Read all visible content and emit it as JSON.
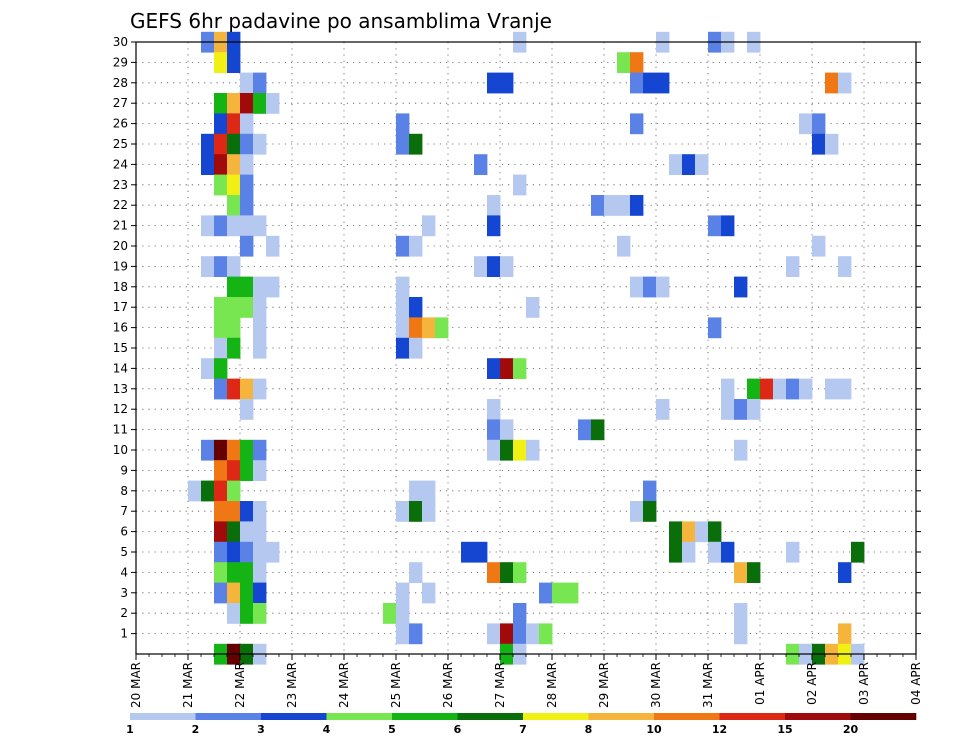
{
  "chart_data": {
    "type": "heatmap",
    "title": "GEFS 6hr padavine po ansamblima Vranje",
    "xlabel": "",
    "ylabel": "",
    "x_ticks": [
      "20 MAR",
      "21 MAR",
      "22 MAR",
      "23 MAR",
      "24 MAR",
      "25 MAR",
      "26 MAR",
      "27 MAR",
      "28 MAR",
      "29 MAR",
      "30 MAR",
      "31 MAR",
      "01 APR",
      "02 APR",
      "03 APR",
      "04 APR"
    ],
    "y_ticks": [
      1,
      2,
      3,
      4,
      5,
      6,
      7,
      8,
      9,
      10,
      11,
      12,
      13,
      14,
      15,
      16,
      17,
      18,
      19,
      20,
      21,
      22,
      23,
      24,
      25,
      26,
      27,
      28,
      29,
      30
    ],
    "x_range": [
      "20 MAR",
      "04 APR"
    ],
    "y_range": [
      0,
      30
    ],
    "time_step_hours": 6,
    "grid": true,
    "colorbar": {
      "labels": [
        "1",
        "2",
        "3",
        "4",
        "5",
        "6",
        "7",
        "8",
        "10",
        "12",
        "15",
        "20"
      ],
      "colors": [
        "#b4c8f0",
        "#5a82e6",
        "#1446d2",
        "#78e650",
        "#14b414",
        "#0a6e0a",
        "#f0f014",
        "#f5b43c",
        "#f07814",
        "#dc2814",
        "#a00a0a",
        "#640000"
      ]
    },
    "cells": [
      [
        30,
        5,
        1
      ],
      [
        30,
        6,
        7
      ],
      [
        30,
        7,
        2
      ],
      [
        30,
        29,
        0
      ],
      [
        30,
        40,
        0
      ],
      [
        30,
        44,
        1
      ],
      [
        30,
        45,
        0
      ],
      [
        30,
        47,
        0
      ],
      [
        29,
        6,
        6
      ],
      [
        29,
        7,
        2
      ],
      [
        29,
        37,
        3
      ],
      [
        29,
        38,
        8
      ],
      [
        28,
        8,
        0
      ],
      [
        28,
        9,
        1
      ],
      [
        28,
        27,
        2
      ],
      [
        28,
        28,
        2
      ],
      [
        28,
        38,
        1
      ],
      [
        28,
        39,
        2
      ],
      [
        28,
        40,
        2
      ],
      [
        28,
        53,
        8
      ],
      [
        28,
        54,
        0
      ],
      [
        27,
        6,
        4
      ],
      [
        27,
        7,
        7
      ],
      [
        27,
        8,
        10
      ],
      [
        27,
        9,
        4
      ],
      [
        27,
        10,
        0
      ],
      [
        26,
        6,
        2
      ],
      [
        26,
        7,
        9
      ],
      [
        26,
        8,
        0
      ],
      [
        26,
        20,
        1
      ],
      [
        26,
        38,
        1
      ],
      [
        26,
        51,
        0
      ],
      [
        26,
        52,
        1
      ],
      [
        25,
        5,
        2
      ],
      [
        25,
        6,
        9
      ],
      [
        25,
        7,
        5
      ],
      [
        25,
        8,
        1
      ],
      [
        25,
        9,
        0
      ],
      [
        25,
        20,
        1
      ],
      [
        25,
        21,
        5
      ],
      [
        25,
        52,
        2
      ],
      [
        25,
        53,
        0
      ],
      [
        24,
        5,
        2
      ],
      [
        24,
        6,
        10
      ],
      [
        24,
        7,
        7
      ],
      [
        24,
        8,
        0
      ],
      [
        24,
        26,
        1
      ],
      [
        24,
        41,
        0
      ],
      [
        24,
        42,
        2
      ],
      [
        24,
        43,
        0
      ],
      [
        23,
        6,
        3
      ],
      [
        23,
        7,
        6
      ],
      [
        23,
        8,
        1
      ],
      [
        23,
        29,
        0
      ],
      [
        22,
        7,
        3
      ],
      [
        22,
        8,
        1
      ],
      [
        22,
        27,
        0
      ],
      [
        22,
        35,
        1
      ],
      [
        22,
        36,
        0
      ],
      [
        22,
        37,
        0
      ],
      [
        22,
        38,
        2
      ],
      [
        21,
        5,
        0
      ],
      [
        21,
        6,
        1
      ],
      [
        21,
        7,
        0
      ],
      [
        21,
        8,
        0
      ],
      [
        21,
        9,
        0
      ],
      [
        21,
        22,
        0
      ],
      [
        21,
        27,
        2
      ],
      [
        21,
        44,
        1
      ],
      [
        21,
        45,
        2
      ],
      [
        20,
        8,
        1
      ],
      [
        20,
        10,
        0
      ],
      [
        20,
        20,
        1
      ],
      [
        20,
        21,
        0
      ],
      [
        20,
        37,
        0
      ],
      [
        20,
        52,
        0
      ],
      [
        19,
        5,
        0
      ],
      [
        19,
        6,
        1
      ],
      [
        19,
        7,
        0
      ],
      [
        19,
        26,
        0
      ],
      [
        19,
        27,
        2
      ],
      [
        19,
        28,
        0
      ],
      [
        19,
        50,
        0
      ],
      [
        19,
        54,
        0
      ],
      [
        18,
        7,
        4
      ],
      [
        18,
        8,
        4
      ],
      [
        18,
        9,
        0
      ],
      [
        18,
        10,
        0
      ],
      [
        18,
        20,
        0
      ],
      [
        18,
        38,
        0
      ],
      [
        18,
        39,
        1
      ],
      [
        18,
        40,
        0
      ],
      [
        18,
        46,
        2
      ],
      [
        17,
        6,
        3
      ],
      [
        17,
        7,
        3
      ],
      [
        17,
        8,
        3
      ],
      [
        17,
        9,
        0
      ],
      [
        17,
        20,
        0
      ],
      [
        17,
        21,
        2
      ],
      [
        17,
        30,
        0
      ],
      [
        16,
        6,
        3
      ],
      [
        16,
        7,
        3
      ],
      [
        16,
        9,
        0
      ],
      [
        16,
        20,
        0
      ],
      [
        16,
        21,
        8
      ],
      [
        16,
        22,
        7
      ],
      [
        16,
        23,
        3
      ],
      [
        16,
        44,
        1
      ],
      [
        15,
        6,
        0
      ],
      [
        15,
        7,
        4
      ],
      [
        15,
        9,
        0
      ],
      [
        15,
        20,
        2
      ],
      [
        15,
        21,
        0
      ],
      [
        14,
        5,
        0
      ],
      [
        14,
        6,
        4
      ],
      [
        14,
        27,
        2
      ],
      [
        14,
        28,
        10
      ],
      [
        14,
        29,
        3
      ],
      [
        13,
        6,
        1
      ],
      [
        13,
        7,
        9
      ],
      [
        13,
        8,
        7
      ],
      [
        13,
        9,
        0
      ],
      [
        13,
        45,
        0
      ],
      [
        13,
        47,
        4
      ],
      [
        13,
        48,
        9
      ],
      [
        13,
        49,
        0
      ],
      [
        13,
        50,
        1
      ],
      [
        13,
        51,
        0
      ],
      [
        13,
        53,
        0
      ],
      [
        13,
        54,
        0
      ],
      [
        12,
        8,
        0
      ],
      [
        12,
        27,
        0
      ],
      [
        12,
        40,
        0
      ],
      [
        12,
        45,
        0
      ],
      [
        12,
        46,
        1
      ],
      [
        12,
        47,
        0
      ],
      [
        11,
        27,
        1
      ],
      [
        11,
        28,
        0
      ],
      [
        11,
        34,
        1
      ],
      [
        11,
        35,
        5
      ],
      [
        10,
        5,
        1
      ],
      [
        10,
        6,
        11
      ],
      [
        10,
        7,
        8
      ],
      [
        10,
        8,
        4
      ],
      [
        10,
        9,
        1
      ],
      [
        10,
        27,
        0
      ],
      [
        10,
        28,
        5
      ],
      [
        10,
        29,
        6
      ],
      [
        10,
        30,
        0
      ],
      [
        10,
        46,
        0
      ],
      [
        9,
        6,
        8
      ],
      [
        9,
        7,
        9
      ],
      [
        9,
        8,
        4
      ],
      [
        9,
        9,
        0
      ],
      [
        8,
        4,
        0
      ],
      [
        8,
        5,
        5
      ],
      [
        8,
        6,
        9
      ],
      [
        8,
        7,
        3
      ],
      [
        8,
        21,
        0
      ],
      [
        8,
        22,
        0
      ],
      [
        8,
        39,
        1
      ],
      [
        7,
        6,
        8
      ],
      [
        7,
        7,
        8
      ],
      [
        7,
        8,
        2
      ],
      [
        7,
        9,
        0
      ],
      [
        7,
        20,
        0
      ],
      [
        7,
        21,
        5
      ],
      [
        7,
        22,
        0
      ],
      [
        7,
        38,
        0
      ],
      [
        7,
        39,
        5
      ],
      [
        6,
        6,
        10
      ],
      [
        6,
        7,
        5
      ],
      [
        6,
        8,
        0
      ],
      [
        6,
        9,
        0
      ],
      [
        6,
        41,
        5
      ],
      [
        6,
        42,
        7
      ],
      [
        6,
        43,
        0
      ],
      [
        6,
        44,
        5
      ],
      [
        5,
        6,
        1
      ],
      [
        5,
        7,
        2
      ],
      [
        5,
        8,
        1
      ],
      [
        5,
        9,
        0
      ],
      [
        5,
        10,
        0
      ],
      [
        5,
        25,
        2
      ],
      [
        5,
        26,
        2
      ],
      [
        5,
        41,
        5
      ],
      [
        5,
        42,
        0
      ],
      [
        5,
        44,
        0
      ],
      [
        5,
        45,
        2
      ],
      [
        5,
        50,
        0
      ],
      [
        5,
        55,
        5
      ],
      [
        4,
        6,
        3
      ],
      [
        4,
        7,
        4
      ],
      [
        4,
        8,
        4
      ],
      [
        4,
        9,
        0
      ],
      [
        4,
        21,
        0
      ],
      [
        4,
        27,
        8
      ],
      [
        4,
        28,
        5
      ],
      [
        4,
        29,
        3
      ],
      [
        4,
        46,
        7
      ],
      [
        4,
        47,
        5
      ],
      [
        4,
        54,
        2
      ],
      [
        3,
        6,
        1
      ],
      [
        3,
        7,
        7
      ],
      [
        3,
        8,
        4
      ],
      [
        3,
        9,
        2
      ],
      [
        3,
        20,
        0
      ],
      [
        3,
        22,
        0
      ],
      [
        3,
        31,
        1
      ],
      [
        3,
        32,
        3
      ],
      [
        3,
        33,
        3
      ],
      [
        2,
        7,
        0
      ],
      [
        2,
        8,
        4
      ],
      [
        2,
        9,
        3
      ],
      [
        2,
        19,
        3
      ],
      [
        2,
        20,
        0
      ],
      [
        2,
        29,
        1
      ],
      [
        2,
        46,
        0
      ],
      [
        1,
        20,
        0
      ],
      [
        1,
        21,
        1
      ],
      [
        1,
        27,
        0
      ],
      [
        1,
        28,
        10
      ],
      [
        1,
        29,
        1
      ],
      [
        1,
        30,
        0
      ],
      [
        1,
        31,
        3
      ],
      [
        1,
        46,
        0
      ],
      [
        1,
        54,
        7
      ],
      [
        0,
        6,
        4
      ],
      [
        0,
        7,
        11
      ],
      [
        0,
        8,
        5
      ],
      [
        0,
        9,
        0
      ],
      [
        0,
        28,
        4
      ],
      [
        0,
        29,
        0
      ],
      [
        0,
        50,
        3
      ],
      [
        0,
        51,
        0
      ],
      [
        0,
        52,
        5
      ],
      [
        0,
        53,
        7
      ],
      [
        0,
        54,
        6
      ],
      [
        0,
        55,
        0
      ]
    ]
  }
}
